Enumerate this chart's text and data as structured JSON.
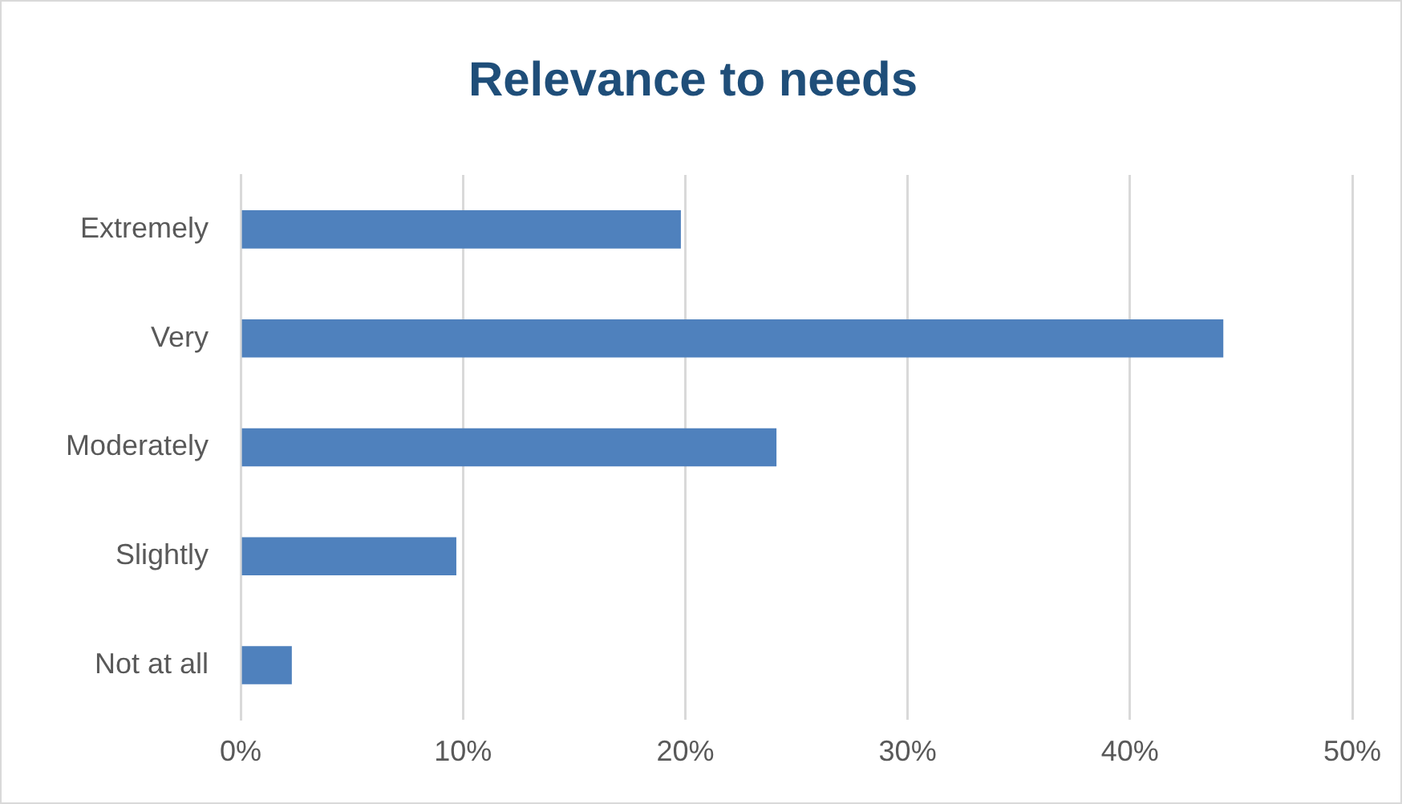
{
  "chart_data": {
    "type": "bar",
    "orientation": "horizontal",
    "title": "Relevance to needs",
    "categories": [
      "Extremely",
      "Very",
      "Moderately",
      "Slightly",
      "Not at all"
    ],
    "values": [
      19.8,
      44.2,
      24.1,
      9.7,
      2.3
    ],
    "color": "#4f81bd",
    "xlim": [
      0,
      50
    ],
    "xticks": [
      {
        "value": 0,
        "label": "0%"
      },
      {
        "value": 10,
        "label": "10%"
      },
      {
        "value": 20,
        "label": "20%"
      },
      {
        "value": 30,
        "label": "30%"
      },
      {
        "value": 40,
        "label": "40%"
      },
      {
        "value": 50,
        "label": "50%"
      }
    ],
    "grid": "x",
    "legend": false
  }
}
